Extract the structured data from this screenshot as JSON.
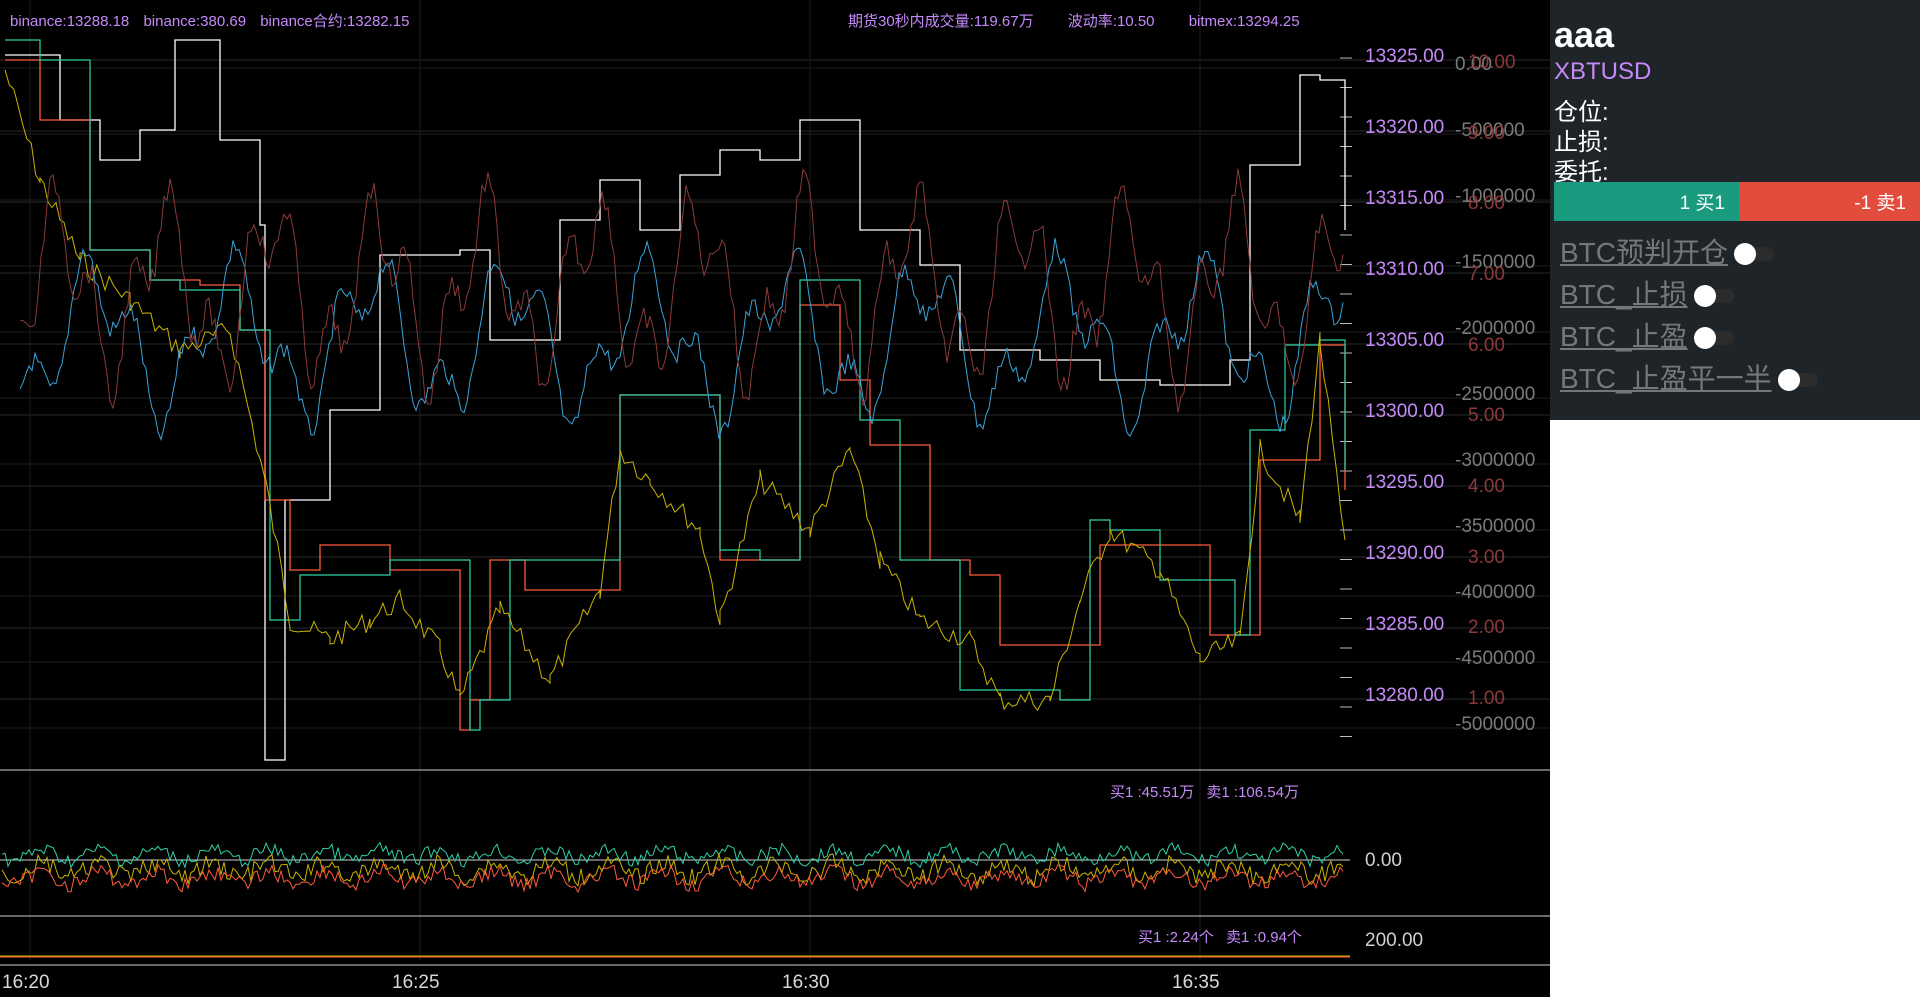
{
  "info_top_left": [
    "binance:13288.18",
    "binance:380.69",
    "binance合约:13282.15"
  ],
  "info_top_right": [
    "期货30秒内成交量:119.67万",
    "波动率:10.50",
    "bitmex:13294.25"
  ],
  "price_axis": [
    "13325.00",
    "13320.00",
    "13315.00",
    "13310.00",
    "13305.00",
    "13300.00",
    "13295.00",
    "13290.00",
    "13285.00",
    "13280.00"
  ],
  "volume_axis": [
    "0.00",
    "-500000",
    "-1000000",
    "-1500000",
    "-2000000",
    "-2500000",
    "-3000000",
    "-3500000",
    "-4000000",
    "-4500000",
    "-5000000"
  ],
  "volatility_axis": [
    "10.00",
    "9.00",
    "8.00",
    "7.00",
    "6.00",
    "5.00",
    "4.00",
    "3.00",
    "2.00",
    "1.00"
  ],
  "sub1": {
    "info": [
      "买1 :45.51万",
      "卖1 :106.54万"
    ],
    "axis_value": "0.00"
  },
  "sub2": {
    "info": [
      "买1 :2.24个",
      "卖1 :0.94个"
    ],
    "axis_value": "200.00"
  },
  "time_axis": [
    "16:20",
    "16:25",
    "16:30",
    "16:35"
  ],
  "panel": {
    "title": "aaa",
    "symbol": "XBTUSD",
    "position_label": "仓位:",
    "stoploss_label": "止损:",
    "order_label": "委托:",
    "buy_button": "1 买1",
    "sell_button": "-1 卖1",
    "toggles": [
      {
        "label": "BTC预判开仓",
        "on": false
      },
      {
        "label": "BTC_止损",
        "on": false
      },
      {
        "label": "BTC_止盈",
        "on": false
      },
      {
        "label": "BTC_止盈平一半",
        "on": false
      }
    ]
  },
  "colors": {
    "chart_bg": "#000000",
    "accent_purple": "#c58af9",
    "series_white": "#ffffff",
    "series_red": "#ff5a3c",
    "series_teal": "#2fd1a8",
    "series_yellow": "#c8b400",
    "series_blue": "#3aa3d8",
    "series_darkred": "#8b3a3a",
    "buy_green": "#1a9a7e",
    "sell_red": "#e24c3c",
    "panel_bg": "#1f2428"
  }
}
